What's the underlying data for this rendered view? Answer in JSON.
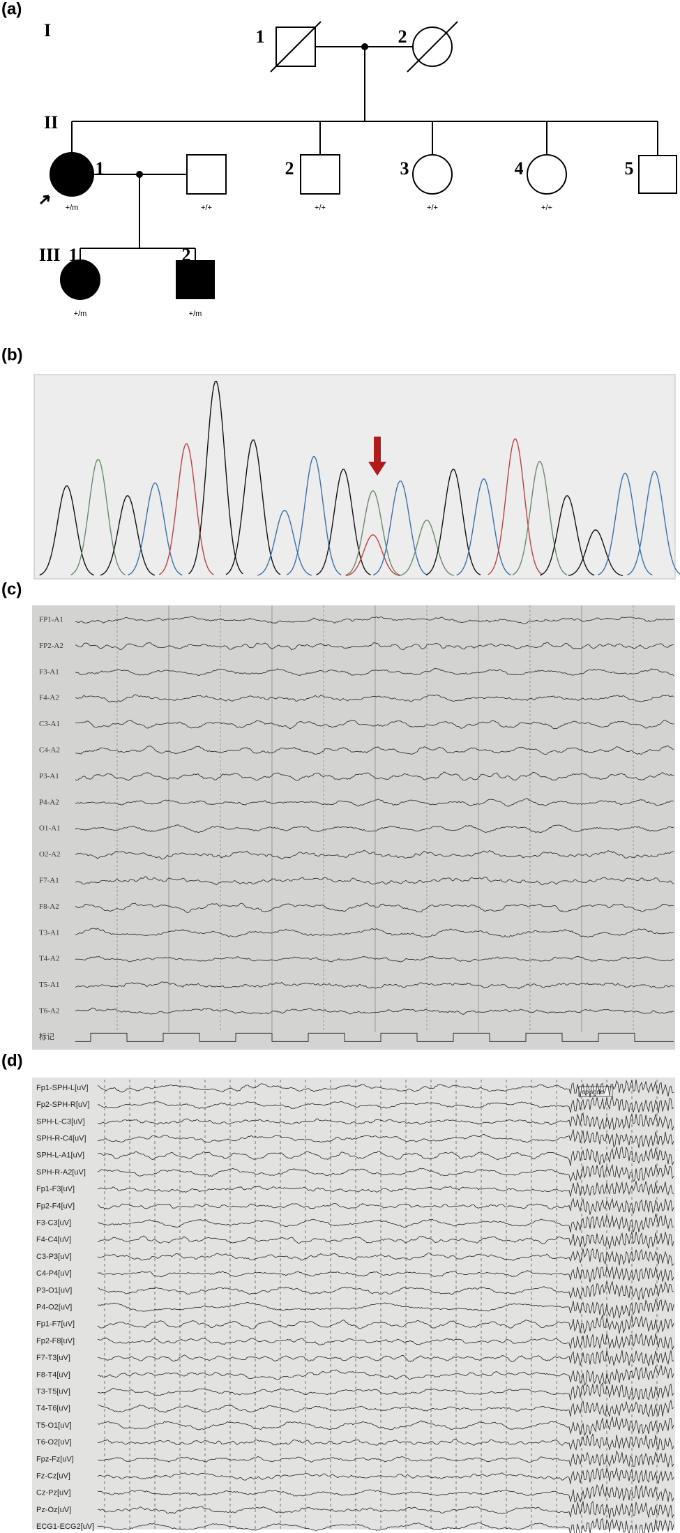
{
  "panels": {
    "a": {
      "label": "(a)",
      "generation_labels": [
        "I",
        "II",
        "III"
      ],
      "individuals": [
        {
          "number": "1"
        },
        {
          "number": "2"
        },
        {
          "number": "1",
          "genotype": "+/m"
        },
        {
          "genotype": "+/+"
        },
        {
          "number": "2",
          "genotype": "+/+"
        },
        {
          "number": "3",
          "genotype": "+/+"
        },
        {
          "number": "4",
          "genotype": "+/+"
        },
        {
          "number": "5"
        },
        {
          "number": "1",
          "genotype": "+/m"
        },
        {
          "number": "2",
          "genotype": "+/m"
        }
      ]
    },
    "b": {
      "label": "(b)"
    },
    "c": {
      "label": "(c)",
      "channels": [
        "FP1-A1",
        "FP2-A2",
        "F3-A1",
        "F4-A2",
        "C3-A1",
        "C4-A2",
        "P3-A1",
        "P4-A2",
        "O1-A1",
        "O2-A2",
        "F7-A1",
        "F8-A2",
        "T3-A1",
        "T4-A2",
        "T5-A1",
        "T6-A2",
        "标记"
      ]
    },
    "d": {
      "label": "(d)",
      "annotation": "episode",
      "channels": [
        "Fp1-SPH-L[uV]",
        "Fp2-SPH-R[uV]",
        "SPH-L-C3[uV]",
        "SPH-R-C4[uV]",
        "SPH-L-A1[uV]",
        "SPH-R-A2[uV]",
        "Fp1-F3[uV]",
        "Fp2-F4[uV]",
        "F3-C3[uV]",
        "F4-C4[uV]",
        "C3-P3[uV]",
        "C4-P4[uV]",
        "P3-O1[uV]",
        "P4-O2[uV]",
        "Fp1-F7[uV]",
        "Fp2-F8[uV]",
        "F7-T3[uV]",
        "F8-T4[uV]",
        "T3-T5[uV]",
        "T4-T6[uV]",
        "T5-O1[uV]",
        "T6-O2[uV]",
        "Fpz-Fz[uV]",
        "Fz-Cz[uV]",
        "Cz-Pz[uV]",
        "Pz-Oz[uV]",
        "ECG1-ECG2[uV]"
      ]
    }
  }
}
